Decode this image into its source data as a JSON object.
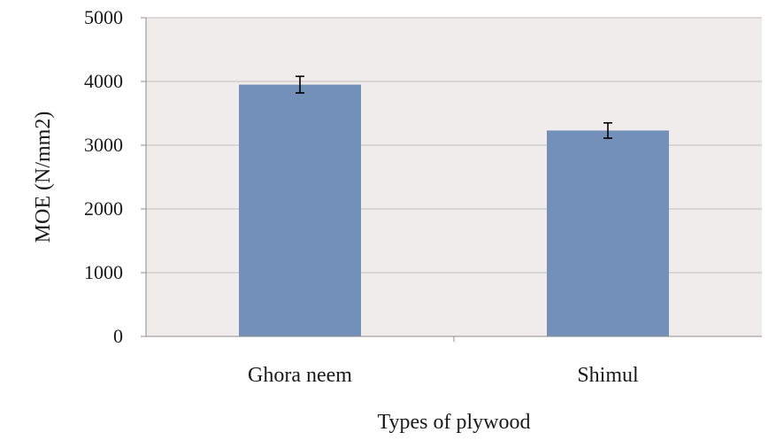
{
  "chart_data": {
    "type": "bar",
    "title": "",
    "xlabel": "Types of plywood",
    "ylabel": "MOE (N/mm2)",
    "ylim": [
      0,
      5000
    ],
    "yticks": [
      0,
      1000,
      2000,
      3000,
      4000,
      5000
    ],
    "categories": [
      "Ghora neem",
      "Shimul"
    ],
    "values": [
      3950,
      3230
    ],
    "error": [
      130,
      120
    ],
    "grid": true,
    "legend": "none",
    "colors": {
      "bar": "#7290b8",
      "plot_background": "#f0eceb",
      "grid": "#bfbfbf",
      "axis": "#8c8c8c",
      "error_bar": "#000000"
    }
  }
}
